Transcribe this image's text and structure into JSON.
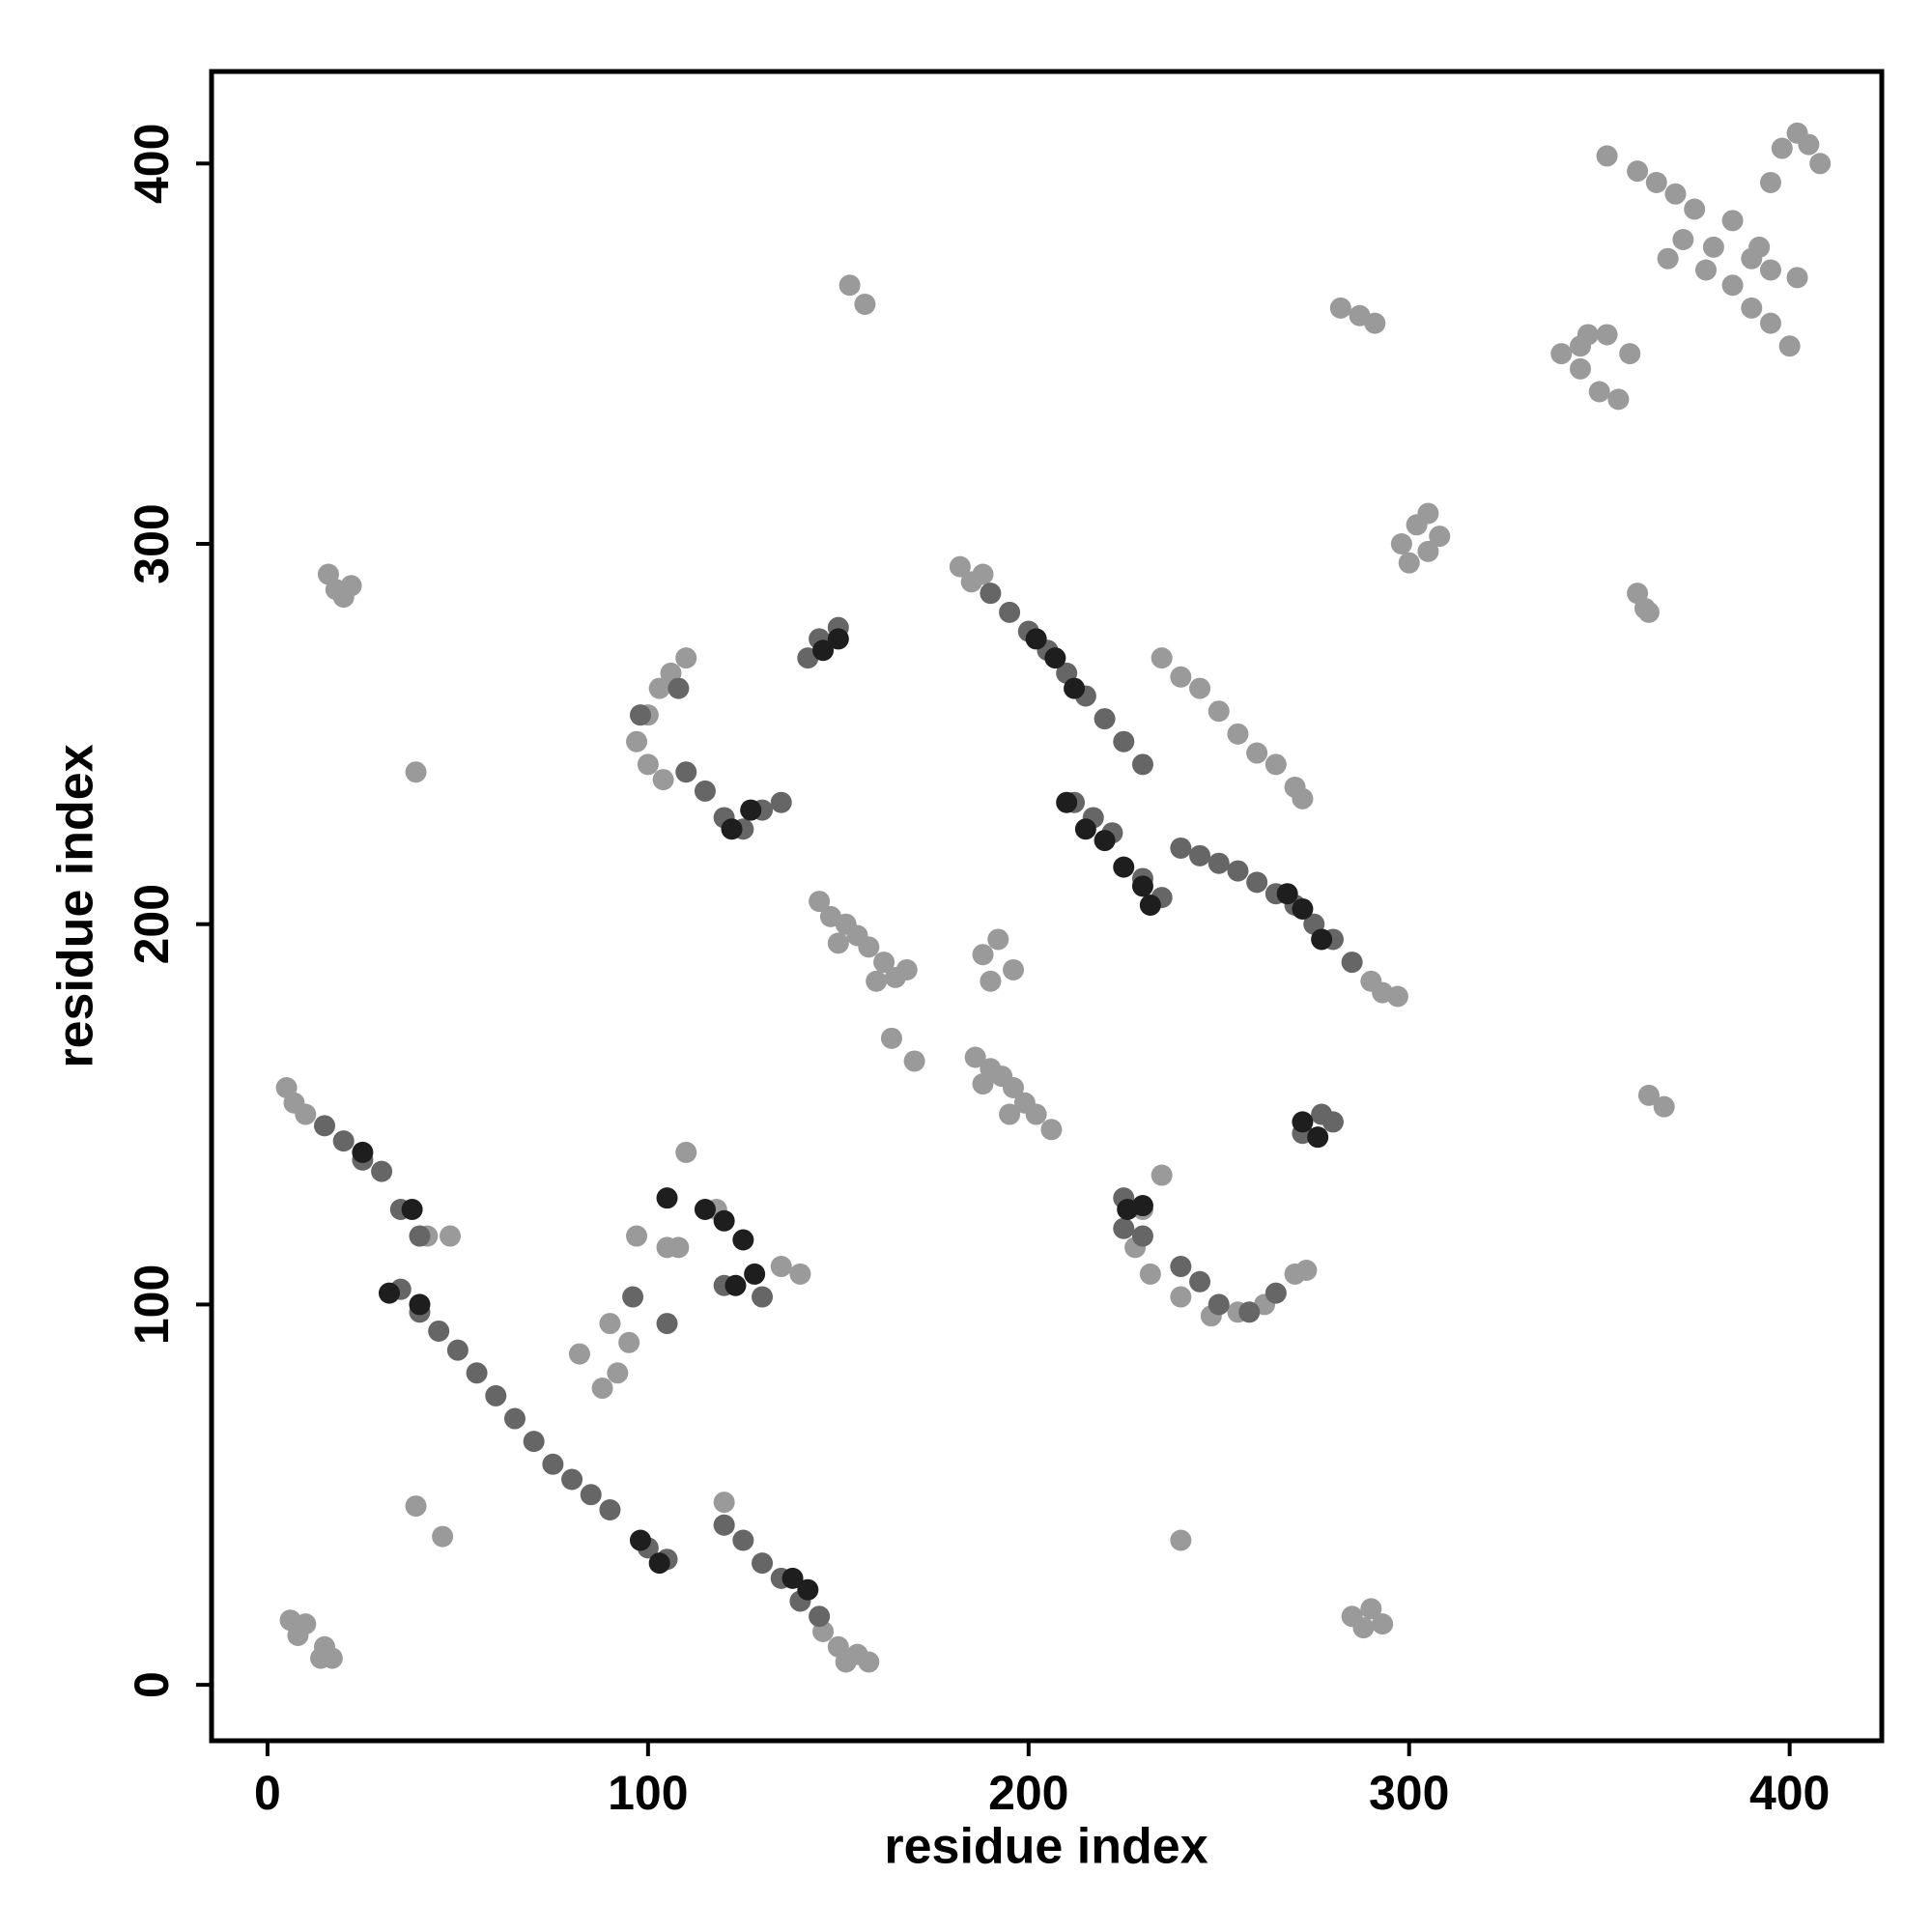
{
  "chart_data": {
    "type": "scatter",
    "xlabel": "residue index",
    "ylabel": "residue index",
    "xlim": [
      -14.7,
      424.2
    ],
    "ylim": [
      -14.7,
      424.2
    ],
    "xticks": [
      0,
      100,
      200,
      300,
      400
    ],
    "yticks": [
      0,
      100,
      200,
      300,
      400
    ],
    "series": [
      {
        "color": "#9a9a9a",
        "x": [
          18,
          16,
          20,
          22,
          6,
          8,
          10,
          14,
          17,
          15,
          39,
          39,
          46,
          352,
          360,
          365,
          370,
          375,
          372,
          368,
          378,
          385,
          390,
          395,
          400,
          395,
          402,
          390,
          405,
          402,
          398,
          408,
          395,
          385,
          380,
          392,
          340,
          345,
          350,
          355,
          345,
          352,
          358,
          347,
          282,
          287,
          291,
          298,
          302,
          305,
          300,
          305,
          308,
          360,
          362,
          363,
          363,
          367,
          153,
          157,
          285,
          288,
          290,
          293,
          240,
          164,
          170,
          188,
          192,
          196,
          190,
          186,
          190,
          193,
          196,
          199,
          202,
          206,
          188,
          195,
          145,
          148,
          152,
          155,
          158,
          162,
          165,
          168,
          150,
          160,
          97,
          100,
          103,
          106,
          110,
          100,
          104,
          235,
          230,
          228,
          232,
          240,
          248,
          255,
          262,
          270,
          273,
          7,
          5,
          10,
          48,
          42,
          155,
          150,
          152,
          158,
          146,
          182,
          185,
          188,
          290,
          293,
          297,
          235,
          240,
          245,
          250,
          255,
          260,
          265,
          270,
          272,
          82,
          90,
          95,
          92,
          88,
          97,
          105,
          110,
          118,
          135,
          140,
          108,
          120,
          120
        ],
        "values": [
          288,
          292,
          286,
          289,
          17,
          13,
          16,
          7,
          7,
          10,
          240,
          47,
          39,
          402,
          398,
          395,
          392,
          388,
          380,
          375,
          372,
          368,
          362,
          358,
          352,
          372,
          370,
          375,
          405,
          408,
          404,
          400,
          395,
          385,
          378,
          378,
          350,
          346,
          340,
          338,
          352,
          355,
          350,
          355,
          362,
          360,
          358,
          300,
          305,
          308,
          295,
          298,
          302,
          287,
          283,
          282,
          155,
          152,
          368,
          363,
          18,
          15,
          20,
          16,
          38,
          170,
          164,
          192,
          196,
          188,
          185,
          165,
          162,
          160,
          157,
          153,
          150,
          146,
          158,
          150,
          206,
          202,
          200,
          197,
          194,
          190,
          186,
          188,
          195,
          185,
          248,
          255,
          262,
          266,
          270,
          242,
          238,
          134,
          125,
          115,
          108,
          102,
          97,
          98,
          100,
          108,
          109,
          153,
          157,
          150,
          118,
          118,
          8,
          10,
          6,
          6,
          14,
          294,
          290,
          292,
          185,
          182,
          181,
          270,
          265,
          262,
          256,
          250,
          245,
          242,
          236,
          233,
          87,
          95,
          90,
          82,
          78,
          118,
          115,
          140,
          125,
          110,
          108,
          115,
          42,
          48
        ]
      },
      {
        "color": "#666666",
        "x": [
          15,
          20,
          25,
          30,
          35,
          40,
          35,
          40,
          45,
          50,
          55,
          60,
          65,
          70,
          75,
          80,
          85,
          90,
          100,
          105,
          120,
          125,
          130,
          135,
          140,
          145,
          190,
          195,
          200,
          205,
          210,
          215,
          220,
          225,
          230,
          240,
          245,
          250,
          255,
          260,
          265,
          270,
          275,
          280,
          285,
          217,
          212,
          222,
          230,
          235,
          110,
          115,
          120,
          125,
          130,
          135,
          108,
          98,
          225,
          230,
          240,
          245,
          250,
          258,
          265,
          225,
          145,
          150,
          142,
          272,
          277,
          280,
          105,
          96,
          120,
          130
        ],
        "values": [
          147,
          143,
          138,
          135,
          125,
          118,
          104,
          98,
          93,
          88,
          82,
          76,
          70,
          64,
          58,
          54,
          50,
          46,
          36,
          33,
          42,
          38,
          32,
          28,
          22,
          18,
          287,
          282,
          277,
          272,
          266,
          260,
          254,
          248,
          242,
          220,
          218,
          216,
          214,
          211,
          208,
          205,
          200,
          196,
          190,
          228,
          232,
          224,
          212,
          207,
          240,
          235,
          228,
          225,
          230,
          232,
          262,
          255,
          120,
          118,
          110,
          106,
          100,
          98,
          103,
          128,
          275,
          278,
          270,
          145,
          150,
          148,
          95,
          102,
          105,
          102
        ]
      },
      {
        "color": "#1e1e1e",
        "x": [
          25,
          38,
          32,
          40,
          98,
          103,
          138,
          142,
          210,
          215,
          220,
          225,
          230,
          232,
          202,
          207,
          212,
          268,
          272,
          277,
          226,
          230,
          115,
          105,
          120,
          125,
          128,
          123,
          122,
          127,
          146,
          150,
          272,
          276
        ],
        "values": [
          140,
          125,
          103,
          100,
          38,
          32,
          28,
          25,
          232,
          225,
          222,
          215,
          210,
          205,
          275,
          270,
          262,
          208,
          204,
          196,
          125,
          126,
          125,
          128,
          122,
          117,
          108,
          105,
          225,
          230,
          272,
          275,
          148,
          144
        ]
      }
    ]
  }
}
